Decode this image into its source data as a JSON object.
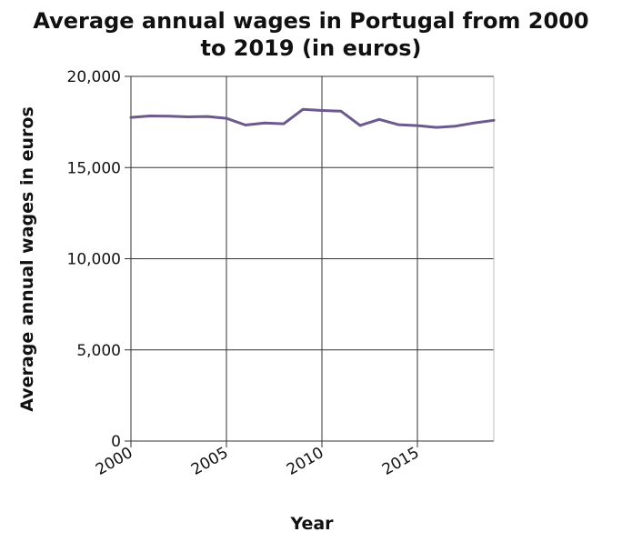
{
  "chart_data": {
    "type": "line",
    "title_line1": "Average annual wages in Portugal from 2000",
    "title_line2": "to 2019 (in euros)",
    "xlabel": "Year",
    "ylabel": "Average annual wages in euros",
    "xlim": [
      2000,
      2019
    ],
    "ylim": [
      0,
      20000
    ],
    "x_ticks": [
      2000,
      2005,
      2010,
      2015
    ],
    "x_tick_labels": [
      "2000",
      "2005",
      "2010",
      "2015"
    ],
    "y_ticks": [
      0,
      5000,
      10000,
      15000,
      20000
    ],
    "y_tick_labels": [
      "0",
      "5,000",
      "10,000",
      "15,000",
      "20,000"
    ],
    "grid": true,
    "line_color": "#6c5a8f",
    "series": [
      {
        "x": [
          2000,
          2001,
          2002,
          2003,
          2004,
          2005,
          2006,
          2007,
          2008,
          2009,
          2010,
          2011,
          2012,
          2013,
          2014,
          2015,
          2016,
          2017,
          2018,
          2019
        ],
        "values": [
          17750,
          17830,
          17820,
          17780,
          17800,
          17700,
          17330,
          17440,
          17400,
          18190,
          18130,
          18090,
          17310,
          17640,
          17350,
          17300,
          17200,
          17270,
          17450,
          17590
        ]
      }
    ]
  }
}
